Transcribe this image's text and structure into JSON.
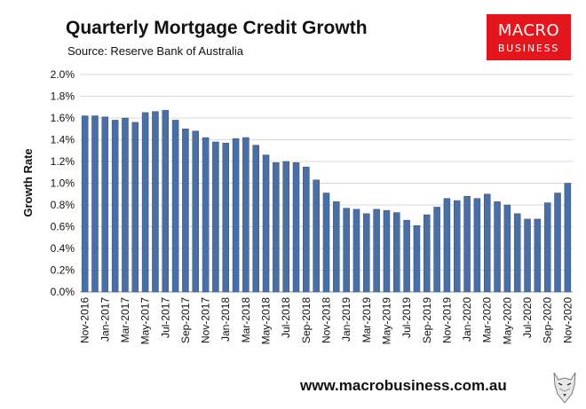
{
  "header": {
    "title": "Quarterly Mortgage Credit Growth",
    "subtitle": "Source: Reserve Bank of Australia"
  },
  "logo": {
    "line1": "MACRO",
    "line2": "BUSINESS"
  },
  "footer": {
    "url": "www.macrobusiness.com.au"
  },
  "colors": {
    "bar": "#4a6fa5",
    "bar_edge": "#2f5080",
    "logo_bg": "#e3161d"
  },
  "chart_data": {
    "type": "bar",
    "title": "Quarterly Mortgage Credit Growth",
    "subtitle": "Source: Reserve Bank of Australia",
    "xlabel": "",
    "ylabel": "Growth Rate",
    "ylim": [
      0,
      0.02
    ],
    "yticks": [
      0,
      0.002,
      0.004,
      0.006,
      0.008,
      0.01,
      0.012,
      0.014,
      0.016,
      0.018,
      0.02
    ],
    "ytick_labels": [
      "0.0%",
      "0.2%",
      "0.4%",
      "0.6%",
      "0.8%",
      "1.0%",
      "1.2%",
      "1.4%",
      "1.6%",
      "1.8%",
      "2.0%"
    ],
    "grid": "horizontal",
    "legend": "none",
    "categories": [
      "Nov-2016",
      "Dec-2016",
      "Jan-2017",
      "Feb-2017",
      "Mar-2017",
      "Apr-2017",
      "May-2017",
      "Jun-2017",
      "Jul-2017",
      "Aug-2017",
      "Sep-2017",
      "Oct-2017",
      "Nov-2017",
      "Dec-2017",
      "Jan-2018",
      "Feb-2018",
      "Mar-2018",
      "Apr-2018",
      "May-2018",
      "Jun-2018",
      "Jul-2018",
      "Aug-2018",
      "Sep-2018",
      "Oct-2018",
      "Nov-2018",
      "Dec-2018",
      "Jan-2019",
      "Feb-2019",
      "Mar-2019",
      "Apr-2019",
      "May-2019",
      "Jun-2019",
      "Jul-2019",
      "Aug-2019",
      "Sep-2019",
      "Oct-2019",
      "Nov-2019",
      "Dec-2019",
      "Jan-2020",
      "Feb-2020",
      "Mar-2020",
      "Apr-2020",
      "May-2020",
      "Jun-2020",
      "Jul-2020",
      "Aug-2020",
      "Sep-2020",
      "Oct-2020",
      "Nov-2020"
    ],
    "visible_tick_labels": [
      "Nov-2016",
      "Jan-2017",
      "Mar-2017",
      "May-2017",
      "Jul-2017",
      "Sep-2017",
      "Nov-2017",
      "Jan-2018",
      "Mar-2018",
      "May-2018",
      "Jul-2018",
      "Sep-2018",
      "Nov-2018",
      "Jan-2019",
      "Mar-2019",
      "May-2019",
      "Jul-2019",
      "Sep-2019",
      "Nov-2019",
      "Jan-2020",
      "Mar-2020",
      "May-2020",
      "Jul-2020",
      "Sep-2020",
      "Nov-2020"
    ],
    "values": [
      0.0162,
      0.0162,
      0.0161,
      0.0158,
      0.016,
      0.0156,
      0.0165,
      0.0166,
      0.0167,
      0.0158,
      0.015,
      0.0148,
      0.0142,
      0.0138,
      0.0137,
      0.0141,
      0.0142,
      0.0135,
      0.0126,
      0.0119,
      0.012,
      0.0119,
      0.0115,
      0.0103,
      0.0091,
      0.0083,
      0.0077,
      0.0076,
      0.0072,
      0.0076,
      0.0075,
      0.0073,
      0.0066,
      0.0061,
      0.0071,
      0.0078,
      0.0086,
      0.0084,
      0.0088,
      0.0086,
      0.009,
      0.0083,
      0.008,
      0.0072,
      0.0067,
      0.0067,
      0.0082,
      0.0091,
      0.01
    ]
  }
}
